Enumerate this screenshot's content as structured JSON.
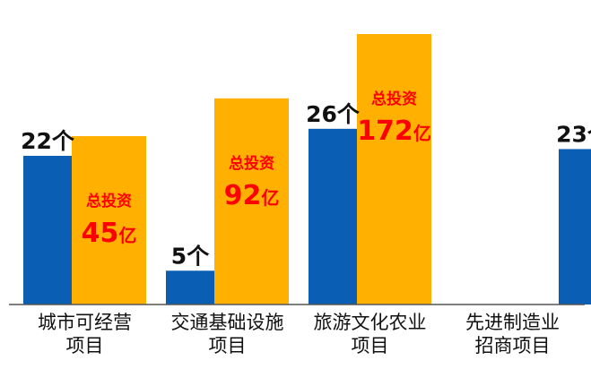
{
  "chart_data": {
    "type": "bar",
    "categories": [
      [
        "城市可经营",
        "项目"
      ],
      [
        "交通基础设施",
        "项目"
      ],
      [
        "旅游文化农业",
        "项目"
      ],
      [
        "先进制造业",
        "招商项目"
      ]
    ],
    "series": [
      {
        "values": [
          22,
          5,
          26,
          23
        ],
        "unit": "个",
        "color": "#0a5fb4"
      },
      {
        "values": [
          45,
          92,
          172,
          null
        ],
        "unit": "亿",
        "label_prefix": "总投资",
        "color": "#ffb000"
      }
    ],
    "label_color": "#ff0000"
  }
}
